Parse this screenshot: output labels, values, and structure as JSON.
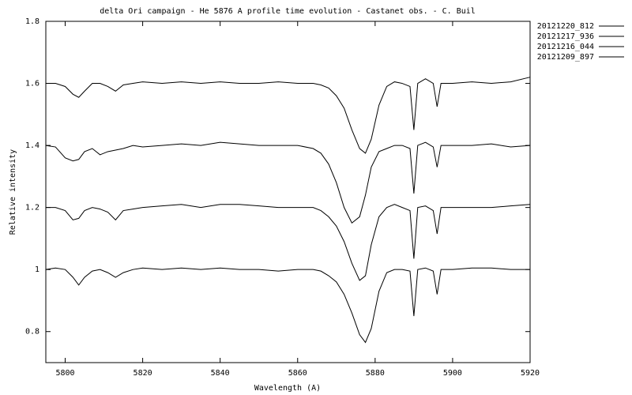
{
  "chart_data": {
    "type": "line",
    "title": "delta Ori campaign - He 5876 A profile time evolution - Castanet obs. - C. Buil",
    "x_label": "Wavelength (A)",
    "y_label": "Relative intensity",
    "x": [
      5795,
      5797.5,
      5800,
      5802,
      5803.5,
      5805,
      5807,
      5809,
      5811,
      5813,
      5815,
      5817.5,
      5820,
      5825,
      5830,
      5835,
      5840,
      5845,
      5850,
      5855,
      5860,
      5864,
      5866,
      5868,
      5870,
      5872,
      5874,
      5876,
      5877.5,
      5879,
      5881,
      5883,
      5885,
      5887,
      5889,
      5890,
      5891,
      5893,
      5895,
      5896,
      5897,
      5900,
      5905,
      5910,
      5915,
      5920
    ],
    "series": [
      {
        "name": "20121220_812",
        "color": "#000000",
        "values": [
          1.6,
          1.6,
          1.59,
          1.565,
          1.555,
          1.575,
          1.6,
          1.6,
          1.59,
          1.575,
          1.595,
          1.6,
          1.605,
          1.6,
          1.605,
          1.6,
          1.605,
          1.6,
          1.6,
          1.605,
          1.6,
          1.6,
          1.595,
          1.585,
          1.56,
          1.52,
          1.45,
          1.39,
          1.375,
          1.42,
          1.53,
          1.59,
          1.605,
          1.6,
          1.59,
          1.45,
          1.6,
          1.615,
          1.6,
          1.525,
          1.6,
          1.6,
          1.605,
          1.6,
          1.605,
          1.62
        ]
      },
      {
        "name": "20121217_936",
        "color": "#000000",
        "values": [
          1.4,
          1.395,
          1.36,
          1.35,
          1.355,
          1.38,
          1.39,
          1.37,
          1.38,
          1.385,
          1.39,
          1.4,
          1.395,
          1.4,
          1.405,
          1.4,
          1.41,
          1.405,
          1.4,
          1.4,
          1.4,
          1.39,
          1.375,
          1.34,
          1.28,
          1.2,
          1.15,
          1.17,
          1.24,
          1.33,
          1.38,
          1.39,
          1.4,
          1.4,
          1.39,
          1.245,
          1.4,
          1.41,
          1.395,
          1.33,
          1.4,
          1.4,
          1.4,
          1.405,
          1.395,
          1.4
        ]
      },
      {
        "name": "20121216_044",
        "color": "#000000",
        "values": [
          1.2,
          1.2,
          1.19,
          1.16,
          1.165,
          1.19,
          1.2,
          1.195,
          1.185,
          1.16,
          1.19,
          1.195,
          1.2,
          1.205,
          1.21,
          1.2,
          1.21,
          1.21,
          1.205,
          1.2,
          1.2,
          1.2,
          1.19,
          1.17,
          1.14,
          1.09,
          1.02,
          0.965,
          0.98,
          1.08,
          1.17,
          1.2,
          1.21,
          1.2,
          1.19,
          1.035,
          1.2,
          1.205,
          1.19,
          1.115,
          1.2,
          1.2,
          1.2,
          1.2,
          1.205,
          1.21
        ]
      },
      {
        "name": "20121209_897",
        "color": "#000000",
        "values": [
          1.0,
          1.005,
          1.0,
          0.975,
          0.95,
          0.975,
          0.995,
          1.0,
          0.99,
          0.975,
          0.99,
          1.0,
          1.005,
          1.0,
          1.005,
          1.0,
          1.005,
          1.0,
          1.0,
          0.995,
          1.0,
          1.0,
          0.995,
          0.98,
          0.96,
          0.92,
          0.86,
          0.79,
          0.765,
          0.81,
          0.93,
          0.99,
          1.0,
          1.0,
          0.995,
          0.85,
          1.0,
          1.005,
          0.995,
          0.92,
          1.0,
          1.0,
          1.005,
          1.005,
          1.0,
          1.0
        ]
      }
    ],
    "xlim": [
      5795,
      5920
    ],
    "xticks": [
      5800,
      5820,
      5840,
      5860,
      5880,
      5900,
      5920
    ],
    "ylim": [
      0.7,
      1.8
    ],
    "yticks": [
      0.8,
      1,
      1.2,
      1.4,
      1.6,
      1.8
    ],
    "grid": false,
    "legend": "outside-top-right"
  }
}
